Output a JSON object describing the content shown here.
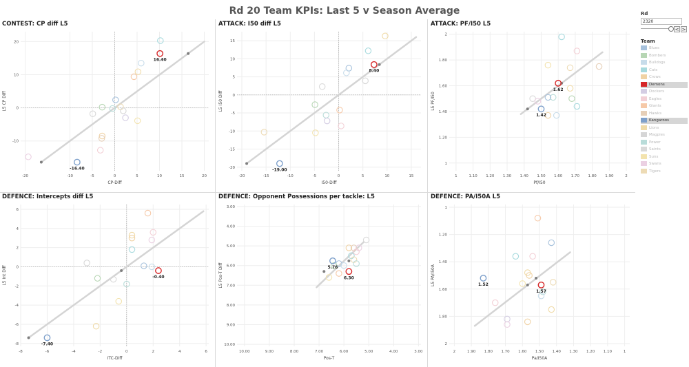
{
  "title": "Rd 20 Team KPIs: Last 5 v Season Average",
  "controls": {
    "rd_label": "Rd",
    "rd_value": "2320",
    "prev": "<",
    "next": ">"
  },
  "legend": {
    "title": "Team",
    "teams": [
      {
        "name": "Blues",
        "color": "#a6c1dc",
        "state": "dim"
      },
      {
        "name": "Bombers",
        "color": "#b7d6b4",
        "state": "dim"
      },
      {
        "name": "Bulldogs",
        "color": "#c7dcea",
        "state": "dim"
      },
      {
        "name": "Cats",
        "color": "#a7dade",
        "state": "dim"
      },
      {
        "name": "Crows",
        "color": "#f0d2a4",
        "state": "dim"
      },
      {
        "name": "Demons",
        "color": "#d62728",
        "state": "sel"
      },
      {
        "name": "Dockers",
        "color": "#d4cde3",
        "state": "dim"
      },
      {
        "name": "Eagles",
        "color": "#f3d0d6",
        "state": "dim"
      },
      {
        "name": "Giants",
        "color": "#f6c9a8",
        "state": "dim"
      },
      {
        "name": "Hawks",
        "color": "#e6cfb8",
        "state": "dim"
      },
      {
        "name": "Kangaroos",
        "color": "#7ea0cb",
        "state": "sel"
      },
      {
        "name": "Lions",
        "color": "#f0dba8",
        "state": "dim"
      },
      {
        "name": "Magpies",
        "color": "#d6d6d6",
        "state": "dim"
      },
      {
        "name": "Power",
        "color": "#b9dcd9",
        "state": "dim"
      },
      {
        "name": "Saints",
        "color": "#d9d9d9",
        "state": "dim"
      },
      {
        "name": "Suns",
        "color": "#f3e3ae",
        "state": "dim"
      },
      {
        "name": "Swans",
        "color": "#ebd0e2",
        "state": "dim"
      },
      {
        "name": "Tigers",
        "color": "#eddbb5",
        "state": "dim"
      }
    ]
  },
  "chart_data": [
    {
      "id": "p1",
      "type": "scatter",
      "title": "CONTEST: CP diff L5",
      "xlabel": "CP-Diff",
      "ylabel": "L5 CP Diff",
      "xlim": [
        -21,
        21
      ],
      "ylim": [
        -19,
        23
      ],
      "xticks": [
        -20,
        -10,
        -5,
        0,
        5,
        10,
        15,
        20
      ],
      "yticks": [
        -10,
        0,
        10,
        20
      ],
      "trend": [
        [
          -16.4,
          -16.4
        ],
        [
          20,
          20
        ]
      ],
      "gray_points": [
        [
          -16.4,
          -16.4
        ],
        [
          16.4,
          16.4
        ]
      ],
      "points": [
        {
          "x": 10.2,
          "y": 20.3,
          "team": "Cats"
        },
        {
          "x": 5.9,
          "y": 13.5,
          "team": "Bulldogs"
        },
        {
          "x": 5.2,
          "y": 10.9,
          "team": "Lions"
        },
        {
          "x": 4.3,
          "y": 9.4,
          "team": "Giants"
        },
        {
          "x": 0.2,
          "y": 2.4,
          "team": "Blues"
        },
        {
          "x": -2.8,
          "y": 0.2,
          "team": "Bombers"
        },
        {
          "x": 1.3,
          "y": 0.3,
          "team": "Tigers"
        },
        {
          "x": 1.9,
          "y": -0.9,
          "team": "Magpies"
        },
        {
          "x": -0.5,
          "y": -0.2,
          "team": "Power"
        },
        {
          "x": -4.9,
          "y": -1.8,
          "team": "Saints"
        },
        {
          "x": 2.4,
          "y": -3.0,
          "team": "Dockers"
        },
        {
          "x": 5.1,
          "y": -3.9,
          "team": "Suns"
        },
        {
          "x": -2.8,
          "y": -8.5,
          "team": "Crows"
        },
        {
          "x": -2.9,
          "y": -9.2,
          "team": "Hawks"
        },
        {
          "x": -3.2,
          "y": -12.8,
          "team": "Eagles"
        },
        {
          "x": -19.3,
          "y": -14.8,
          "team": "Swans"
        }
      ],
      "highlights": [
        {
          "x": 10.1,
          "y": 16.4,
          "label": "16.40",
          "team": "Demons"
        },
        {
          "x": -8.4,
          "y": -16.4,
          "label": "-16.40",
          "team": "Kangaroos"
        }
      ]
    },
    {
      "id": "p2",
      "type": "scatter",
      "title": "ATTACK: I50 diff L5",
      "xlabel": "I50-Diff",
      "ylabel": "L5 I50 Diff",
      "xlim": [
        -21,
        17
      ],
      "ylim": [
        -21,
        17.5
      ],
      "xticks": [
        -20,
        -15,
        -10,
        -5,
        0,
        5,
        10,
        15
      ],
      "yticks": [
        -20,
        -15,
        -10,
        -5,
        0,
        5,
        10,
        15
      ],
      "trend": [
        [
          -19,
          -19
        ],
        [
          16,
          16
        ]
      ],
      "gray_points": [
        [
          -19,
          -19
        ],
        [
          8.4,
          8.4
        ]
      ],
      "points": [
        {
          "x": 9.6,
          "y": 16.3,
          "team": "Lions"
        },
        {
          "x": 6.1,
          "y": 12.2,
          "team": "Cats"
        },
        {
          "x": 2.1,
          "y": 7.4,
          "team": "Blues"
        },
        {
          "x": 5.5,
          "y": 3.9,
          "team": "Magpies"
        },
        {
          "x": 1.6,
          "y": 6.1,
          "team": "Bulldogs"
        },
        {
          "x": -3.4,
          "y": 2.3,
          "team": "Saints"
        },
        {
          "x": -4.9,
          "y": -2.7,
          "team": "Bombers"
        },
        {
          "x": 0.2,
          "y": -4.2,
          "team": "Giants"
        },
        {
          "x": -2.6,
          "y": -5.6,
          "team": "Power"
        },
        {
          "x": -2.4,
          "y": -7.2,
          "team": "Dockers"
        },
        {
          "x": 0.5,
          "y": -8.6,
          "team": "Eagles"
        },
        {
          "x": -4.8,
          "y": -10.5,
          "team": "Suns"
        },
        {
          "x": -15.4,
          "y": -10.3,
          "team": "Tigers"
        }
      ],
      "highlights": [
        {
          "x": 7.3,
          "y": 8.4,
          "label": "8.40",
          "team": "Demons"
        },
        {
          "x": -12.2,
          "y": -19.0,
          "label": "-19.00",
          "team": "Kangaroos"
        }
      ]
    },
    {
      "id": "p3",
      "type": "scatter",
      "title": "ATTACK: PF/I50 L5",
      "xlabel": "Pf/I50",
      "ylabel": "L5 PF/I50",
      "xlim": [
        0.96,
        2.02
      ],
      "ylim": [
        0.94,
        2.02
      ],
      "xticks": [
        1.0,
        1.1,
        1.2,
        1.3,
        1.4,
        1.5,
        1.6,
        1.7,
        1.8,
        1.9,
        2.0
      ],
      "yticks": [
        1.0,
        1.2,
        1.4,
        1.6,
        1.8,
        2.0
      ],
      "trend": [
        [
          1.38,
          1.38
        ],
        [
          1.86,
          1.86
        ]
      ],
      "gray_points": [
        [
          1.42,
          1.42
        ],
        [
          1.62,
          1.62
        ]
      ],
      "points": [
        {
          "x": 1.62,
          "y": 1.98,
          "team": "Cats"
        },
        {
          "x": 1.71,
          "y": 1.87,
          "team": "Eagles"
        },
        {
          "x": 1.54,
          "y": 1.76,
          "team": "Suns"
        },
        {
          "x": 1.67,
          "y": 1.74,
          "team": "Tigers"
        },
        {
          "x": 1.84,
          "y": 1.75,
          "team": "Hawks"
        },
        {
          "x": 1.67,
          "y": 1.58,
          "team": "Lions"
        },
        {
          "x": 1.57,
          "y": 1.51,
          "team": "Power"
        },
        {
          "x": 1.45,
          "y": 1.5,
          "team": "Saints"
        },
        {
          "x": 1.54,
          "y": 1.51,
          "team": "Blues"
        },
        {
          "x": 1.48,
          "y": 1.48,
          "team": "Swans"
        },
        {
          "x": 1.68,
          "y": 1.5,
          "team": "Bombers"
        },
        {
          "x": 1.71,
          "y": 1.44,
          "team": "Cats"
        },
        {
          "x": 1.54,
          "y": 1.37,
          "team": "Crows"
        },
        {
          "x": 1.59,
          "y": 1.37,
          "team": "Bulldogs"
        }
      ],
      "highlights": [
        {
          "x": 1.6,
          "y": 1.62,
          "label": "1.62",
          "team": "Demons"
        },
        {
          "x": 1.5,
          "y": 1.42,
          "label": "1.42",
          "team": "Kangaroos"
        }
      ]
    },
    {
      "id": "p4",
      "type": "scatter",
      "title": "DEFENCE: Intercepts diff L5",
      "xlabel": "ITC-Diff",
      "ylabel": "L5 Int Diff",
      "xlim": [
        -8,
        6.2
      ],
      "ylim": [
        -8.3,
        6.5
      ],
      "xticks": [
        -8,
        -6,
        -4,
        -2,
        0,
        2,
        4,
        6
      ],
      "yticks": [
        -8,
        -6,
        -4,
        -2,
        0,
        2,
        4,
        6
      ],
      "trend": [
        [
          -7.4,
          -7.4
        ],
        [
          5.8,
          5.8
        ]
      ],
      "gray_points": [
        [
          -7.4,
          -7.4
        ],
        [
          -0.4,
          -0.4
        ]
      ],
      "points": [
        {
          "x": 1.6,
          "y": 5.6,
          "team": "Giants"
        },
        {
          "x": 2.0,
          "y": 3.6,
          "team": "Eagles"
        },
        {
          "x": 0.4,
          "y": 3.3,
          "team": "Lions"
        },
        {
          "x": 0.4,
          "y": 3.0,
          "team": "Crows"
        },
        {
          "x": 1.9,
          "y": 2.8,
          "team": "Swans"
        },
        {
          "x": 0.4,
          "y": 1.8,
          "team": "Cats"
        },
        {
          "x": -3.0,
          "y": 0.4,
          "team": "Magpies"
        },
        {
          "x": 1.3,
          "y": 0.1,
          "team": "Blues"
        },
        {
          "x": 1.9,
          "y": 0.0,
          "team": "Bulldogs"
        },
        {
          "x": -2.2,
          "y": -1.2,
          "team": "Bombers"
        },
        {
          "x": -1.0,
          "y": -1.3,
          "team": "Saints"
        },
        {
          "x": 0.0,
          "y": -1.8,
          "team": "Power"
        },
        {
          "x": -0.6,
          "y": -3.6,
          "team": "Suns"
        },
        {
          "x": -2.3,
          "y": -6.2,
          "team": "Lions"
        }
      ],
      "highlights": [
        {
          "x": 2.4,
          "y": -0.4,
          "label": "-0.40",
          "team": "Demons"
        },
        {
          "x": -6.0,
          "y": -7.4,
          "label": "-7.40",
          "team": "Kangaroos"
        }
      ]
    },
    {
      "id": "p5",
      "type": "scatter",
      "title": "DEFENCE: Opponent Possessions per tackle: L5",
      "xlabel": "Pos-T",
      "ylabel": "L5 Pos-T Diff",
      "xlim": [
        10.3,
        2.9
      ],
      "ylim": [
        10.1,
        2.9
      ],
      "x_reversed": true,
      "y_reversed": true,
      "xticks": [
        10,
        9,
        8,
        7,
        6,
        5,
        4,
        3
      ],
      "yticks": [
        3,
        4,
        5,
        6,
        7,
        8,
        9,
        10
      ],
      "xtick_labels": [
        "10.00",
        "9.00",
        "8.00",
        "7.00",
        "6.00",
        "5.00",
        "4.00",
        "3.00"
      ],
      "ytick_labels": [
        "3.00",
        "4.00",
        "5.00",
        "6.00",
        "7.00",
        "8.00",
        "9.00",
        "10.00"
      ],
      "trend": [
        [
          7.1,
          7.1
        ],
        [
          5.2,
          4.8
        ]
      ],
      "gray_points": [
        [
          6.8,
          6.3
        ],
        [
          5.8,
          5.76
        ]
      ],
      "points": [
        {
          "x": 5.1,
          "y": 4.7,
          "team": "Saints"
        },
        {
          "x": 5.8,
          "y": 5.1,
          "team": "Crows"
        },
        {
          "x": 5.6,
          "y": 5.1,
          "team": "Hawks"
        },
        {
          "x": 5.4,
          "y": 5.1,
          "team": "Swans"
        },
        {
          "x": 5.5,
          "y": 5.3,
          "team": "Eagles"
        },
        {
          "x": 5.7,
          "y": 5.5,
          "team": "Cats"
        },
        {
          "x": 5.6,
          "y": 5.7,
          "team": "Tigers"
        },
        {
          "x": 5.5,
          "y": 5.9,
          "team": "Power"
        },
        {
          "x": 6.2,
          "y": 5.9,
          "team": "Blues"
        },
        {
          "x": 6.0,
          "y": 6.0,
          "team": "Bulldogs"
        },
        {
          "x": 6.4,
          "y": 6.0,
          "team": "Bombers"
        },
        {
          "x": 6.6,
          "y": 6.6,
          "team": "Suns"
        },
        {
          "x": 6.2,
          "y": 6.4,
          "team": "Giants"
        }
      ],
      "highlights": [
        {
          "x": 6.45,
          "y": 5.76,
          "label": "5.76",
          "team": "Kangaroos"
        },
        {
          "x": 5.8,
          "y": 6.3,
          "label": "6.30",
          "team": "Demons"
        }
      ]
    },
    {
      "id": "p6",
      "type": "scatter",
      "title": "DEFENCE: PA/I50A L5",
      "xlabel": "Pa/I50A",
      "ylabel": "L5 PA/I50A",
      "xlim": [
        2.03,
        0.97
      ],
      "ylim": [
        2.02,
        0.98
      ],
      "x_reversed": true,
      "y_reversed": true,
      "xticks": [
        2.0,
        1.9,
        1.8,
        1.7,
        1.6,
        1.5,
        1.4,
        1.3,
        1.2,
        1.1,
        1.0
      ],
      "yticks": [
        1.0,
        1.2,
        1.4,
        1.6,
        1.8,
        2.0
      ],
      "trend": [
        [
          1.88,
          1.87
        ],
        [
          1.32,
          1.33
        ]
      ],
      "gray_points": [
        [
          1.57,
          1.57
        ],
        [
          1.52,
          1.52
        ]
      ],
      "points": [
        {
          "x": 1.51,
          "y": 1.08,
          "team": "Giants"
        },
        {
          "x": 1.43,
          "y": 1.26,
          "team": "Blues"
        },
        {
          "x": 1.64,
          "y": 1.36,
          "team": "Cats"
        },
        {
          "x": 1.57,
          "y": 1.48,
          "team": "Lions"
        },
        {
          "x": 1.56,
          "y": 1.5,
          "team": "Crows"
        },
        {
          "x": 1.54,
          "y": 1.36,
          "team": "Eagles"
        },
        {
          "x": 1.6,
          "y": 1.56,
          "team": "Suns"
        },
        {
          "x": 1.42,
          "y": 1.55,
          "team": "Tigers"
        },
        {
          "x": 1.48,
          "y": 1.62,
          "team": "Power"
        },
        {
          "x": 1.49,
          "y": 1.65,
          "team": "Bulldogs"
        },
        {
          "x": 1.43,
          "y": 1.75,
          "team": "Lions"
        },
        {
          "x": 1.76,
          "y": 1.7,
          "team": "Eagles"
        },
        {
          "x": 1.69,
          "y": 1.82,
          "team": "Dockers"
        },
        {
          "x": 1.57,
          "y": 1.84,
          "team": "Crows"
        },
        {
          "x": 1.69,
          "y": 1.86,
          "team": "Swans"
        }
      ],
      "highlights": [
        {
          "x": 1.83,
          "y": 1.52,
          "label": "1.52",
          "team": "Kangaroos"
        },
        {
          "x": 1.49,
          "y": 1.57,
          "label": "1.57",
          "team": "Demons"
        }
      ]
    }
  ]
}
